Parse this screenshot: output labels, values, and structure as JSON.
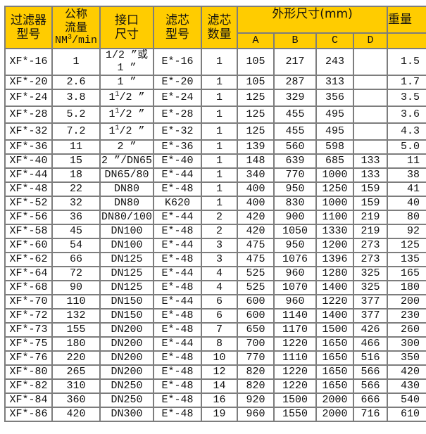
{
  "header": {
    "model": "过滤器\n型号",
    "flow": "公称\n流量",
    "flow_unit_a": "NM",
    "flow_unit_sup": "3",
    "flow_unit_b": "/min",
    "connection": "接口\n尺寸",
    "element_model": "滤芯\n型号",
    "element_count": "滤芯\n数量",
    "dimensions": "外形尺寸(mm)",
    "dim_cols": [
      "A",
      "B",
      "C",
      "D"
    ],
    "weight": "重量"
  },
  "colors": {
    "header_bg": "#ffcc00",
    "border": "#7d7d7d"
  },
  "rows": [
    {
      "model": "XF*-16",
      "flow": "1",
      "conn": {
        "text": "1/2 ”或\n1 ”"
      },
      "elem": "E*-16",
      "qty": "1",
      "A": "105",
      "B": "217",
      "C": "243",
      "D": "",
      "wt": "1.5"
    },
    {
      "model": "XF*-20",
      "flow": "2.6",
      "conn": {
        "text": "1 ”"
      },
      "elem": "E*-20",
      "qty": "1",
      "A": "105",
      "B": "287",
      "C": "313",
      "D": "",
      "wt": "1.7"
    },
    {
      "model": "XF*-24",
      "flow": "3.8",
      "conn": {
        "pre": "1",
        "sup": "1",
        "post": "/2 ”"
      },
      "elem": "E*-24",
      "qty": "1",
      "A": "125",
      "B": "329",
      "C": "356",
      "D": "",
      "wt": "3.5"
    },
    {
      "model": "XF*-28",
      "flow": "5.2",
      "conn": {
        "pre": "1",
        "sup": "1",
        "post": "/2 ”"
      },
      "elem": "E*-28",
      "qty": "1",
      "A": "125",
      "B": "455",
      "C": "495",
      "D": "",
      "wt": "3.6"
    },
    {
      "model": "XF*-32",
      "flow": "7.2",
      "conn": {
        "pre": "1",
        "sup": "1",
        "post": "/2 ”"
      },
      "elem": "E*-32",
      "qty": "1",
      "A": "125",
      "B": "455",
      "C": "495",
      "D": "",
      "wt": "4.3"
    },
    {
      "model": "XF*-36",
      "flow": "11",
      "conn": {
        "text": "2 ”"
      },
      "elem": "E*-36",
      "qty": "1",
      "A": "139",
      "B": "560",
      "C": "598",
      "D": "",
      "wt": "5.0"
    },
    {
      "model": "XF*-40",
      "flow": "15",
      "conn": {
        "text": "2 ”/DN65"
      },
      "elem": "E*-40",
      "qty": "1",
      "A": "148",
      "B": "639",
      "C": "685",
      "D": "133",
      "wt": "11"
    },
    {
      "model": "XF*-44",
      "flow": "18",
      "conn": {
        "text": "DN65/80"
      },
      "elem": "E*-44",
      "qty": "1",
      "A": "340",
      "B": "770",
      "C": "1000",
      "D": "133",
      "wt": "38"
    },
    {
      "model": "XF*-48",
      "flow": "22",
      "conn": {
        "text": "DN80"
      },
      "elem": "E*-48",
      "qty": "1",
      "A": "400",
      "B": "950",
      "C": "1250",
      "D": "159",
      "wt": "41"
    },
    {
      "model": "XF*-52",
      "flow": "32",
      "conn": {
        "text": "DN80"
      },
      "elem": "K620",
      "qty": "1",
      "A": "400",
      "B": "830",
      "C": "1000",
      "D": "159",
      "wt": "40"
    },
    {
      "model": "XF*-56",
      "flow": "36",
      "conn": {
        "text": "DN80/100"
      },
      "elem": "E*-44",
      "qty": "2",
      "A": "420",
      "B": "900",
      "C": "1100",
      "D": "219",
      "wt": "80"
    },
    {
      "model": "XF*-58",
      "flow": "45",
      "conn": {
        "text": "DN100"
      },
      "elem": "E*-48",
      "qty": "2",
      "A": "420",
      "B": "1050",
      "C": "1330",
      "D": "219",
      "wt": "92"
    },
    {
      "model": "XF*-60",
      "flow": "54",
      "conn": {
        "text": "DN100"
      },
      "elem": "E*-44",
      "qty": "3",
      "A": "475",
      "B": "950",
      "C": "1200",
      "D": "273",
      "wt": "125"
    },
    {
      "model": "XF*-62",
      "flow": "66",
      "conn": {
        "text": "DN125"
      },
      "elem": "E*-48",
      "qty": "3",
      "A": "475",
      "B": "1076",
      "C": "1396",
      "D": "273",
      "wt": "135"
    },
    {
      "model": "XF*-64",
      "flow": "72",
      "conn": {
        "text": "DN125"
      },
      "elem": "E*-44",
      "qty": "4",
      "A": "525",
      "B": "960",
      "C": "1280",
      "D": "325",
      "wt": "165"
    },
    {
      "model": "XF*-68",
      "flow": "90",
      "conn": {
        "text": "DN125"
      },
      "elem": "E*-48",
      "qty": "4",
      "A": "525",
      "B": "1070",
      "C": "1400",
      "D": "325",
      "wt": "180"
    },
    {
      "model": "XF*-70",
      "flow": "110",
      "conn": {
        "text": "DN150"
      },
      "elem": "E*-44",
      "qty": "6",
      "A": "600",
      "B": "960",
      "C": "1220",
      "D": "377",
      "wt": "200"
    },
    {
      "model": "XF*-72",
      "flow": "132",
      "conn": {
        "text": "DN150"
      },
      "elem": "E*-48",
      "qty": "6",
      "A": "600",
      "B": "1140",
      "C": "1400",
      "D": "377",
      "wt": "230"
    },
    {
      "model": "XF*-73",
      "flow": "155",
      "conn": {
        "text": "DN200"
      },
      "elem": "E*-48",
      "qty": "7",
      "A": "650",
      "B": "1170",
      "C": "1500",
      "D": "426",
      "wt": "260"
    },
    {
      "model": "XF*-75",
      "flow": "180",
      "conn": {
        "text": "DN200"
      },
      "elem": "E*-44",
      "qty": "8",
      "A": "700",
      "B": "1220",
      "C": "1650",
      "D": "466",
      "wt": "300"
    },
    {
      "model": "XF*-76",
      "flow": "220",
      "conn": {
        "text": "DN200"
      },
      "elem": "E*-48",
      "qty": "10",
      "A": "770",
      "B": "1110",
      "C": "1650",
      "D": "516",
      "wt": "350"
    },
    {
      "model": "XF*-80",
      "flow": "265",
      "conn": {
        "text": "DN200"
      },
      "elem": "E*-48",
      "qty": "12",
      "A": "820",
      "B": "1220",
      "C": "1650",
      "D": "566",
      "wt": "420"
    },
    {
      "model": "XF*-82",
      "flow": "310",
      "conn": {
        "text": "DN250"
      },
      "elem": "E*-48",
      "qty": "14",
      "A": "820",
      "B": "1220",
      "C": "1650",
      "D": "566",
      "wt": "430"
    },
    {
      "model": "XF*-84",
      "flow": "360",
      "conn": {
        "text": "DN250"
      },
      "elem": "E*-48",
      "qty": "16",
      "A": "920",
      "B": "1500",
      "C": "2000",
      "D": "666",
      "wt": "540"
    },
    {
      "model": "XF*-86",
      "flow": "420",
      "conn": {
        "text": "DN300"
      },
      "elem": "E*-48",
      "qty": "19",
      "A": "960",
      "B": "1550",
      "C": "2000",
      "D": "716",
      "wt": "610"
    }
  ]
}
